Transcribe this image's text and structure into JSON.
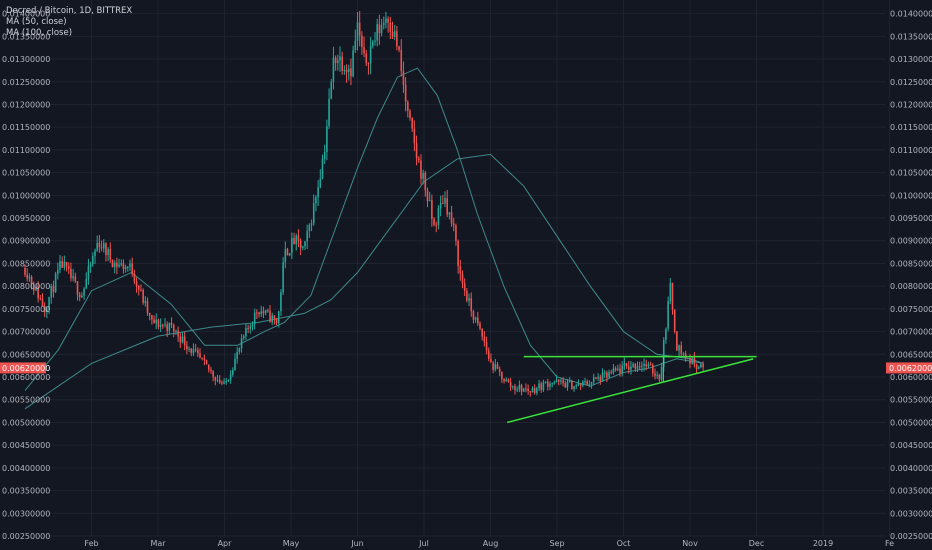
{
  "legend": {
    "line1": "Decred / Bitcoin, 1D, BITTREX",
    "line2": "MA (50, close)",
    "line3": "MA (100, close)"
  },
  "colors": {
    "background": "#131722",
    "grid": "#1f2330",
    "up": "#26a69a",
    "down": "#ef5350",
    "ma": "#3e8a8a",
    "trendline": "#39e639",
    "price_tag": "#ef5350",
    "axis_text": "#b2b5be"
  },
  "last_price": "0.00620000",
  "chart_data": {
    "type": "candlestick",
    "symbol": "Decred / Bitcoin",
    "timeframe": "1D",
    "exchange": "BITTREX",
    "ylim": [
      0.0025,
      0.0143
    ],
    "y_ticks": [
      "0.01400000",
      "0.01350000",
      "0.01300000",
      "0.01250000",
      "0.01200000",
      "0.01150000",
      "0.01100000",
      "0.01050000",
      "0.01000000",
      "0.00950000",
      "0.00900000",
      "0.00850000",
      "0.00800000",
      "0.00750000",
      "0.00700000",
      "0.00650000",
      "0.00600000",
      "0.00550000",
      "0.00500000",
      "0.00450000",
      "0.00400000",
      "0.00350000",
      "0.00300000",
      "0.00250000"
    ],
    "x_ticks": [
      {
        "label": "Feb",
        "month": 1
      },
      {
        "label": "Mar",
        "month": 2
      },
      {
        "label": "Apr",
        "month": 3
      },
      {
        "label": "May",
        "month": 4
      },
      {
        "label": "Jun",
        "month": 5
      },
      {
        "label": "Jul",
        "month": 6
      },
      {
        "label": "Aug",
        "month": 7
      },
      {
        "label": "Sep",
        "month": 8
      },
      {
        "label": "Oct",
        "month": 9
      },
      {
        "label": "Nov",
        "month": 10
      },
      {
        "label": "Dec",
        "month": 11
      },
      {
        "label": "2019",
        "month": 12
      },
      {
        "label": "Fe",
        "month": 13
      }
    ],
    "price_path": [
      [
        0.0,
        0.0084
      ],
      [
        0.3,
        0.0075
      ],
      [
        0.55,
        0.0085
      ],
      [
        0.85,
        0.0078
      ],
      [
        1.1,
        0.009
      ],
      [
        1.35,
        0.0085
      ],
      [
        1.6,
        0.0084
      ],
      [
        1.9,
        0.0072
      ],
      [
        2.2,
        0.0071
      ],
      [
        2.5,
        0.0066
      ],
      [
        2.8,
        0.0061
      ],
      [
        3.0,
        0.0058
      ],
      [
        3.3,
        0.0069
      ],
      [
        3.5,
        0.0075
      ],
      [
        3.8,
        0.0072
      ],
      [
        3.9,
        0.0087
      ],
      [
        4.05,
        0.009
      ],
      [
        4.2,
        0.0088
      ],
      [
        4.35,
        0.0098
      ],
      [
        4.5,
        0.011
      ],
      [
        4.65,
        0.0131
      ],
      [
        4.9,
        0.0128
      ],
      [
        5.0,
        0.0137
      ],
      [
        5.1,
        0.0129
      ],
      [
        5.3,
        0.0136
      ],
      [
        5.45,
        0.014
      ],
      [
        5.6,
        0.0133
      ],
      [
        5.75,
        0.0118
      ],
      [
        5.9,
        0.0108
      ],
      [
        6.0,
        0.0103
      ],
      [
        6.15,
        0.0093
      ],
      [
        6.3,
        0.01
      ],
      [
        6.45,
        0.0092
      ],
      [
        6.55,
        0.0082
      ],
      [
        6.7,
        0.0075
      ],
      [
        6.9,
        0.0068
      ],
      [
        7.0,
        0.0063
      ],
      [
        7.3,
        0.0058
      ],
      [
        7.6,
        0.0057
      ],
      [
        7.9,
        0.0059
      ],
      [
        8.3,
        0.0058
      ],
      [
        8.7,
        0.006
      ],
      [
        9.0,
        0.0062
      ],
      [
        9.3,
        0.0063
      ],
      [
        9.55,
        0.006
      ],
      [
        9.7,
        0.008
      ],
      [
        9.8,
        0.0067
      ],
      [
        9.95,
        0.0064
      ],
      [
        10.2,
        0.0062
      ]
    ],
    "ma50_path": [
      [
        0.0,
        0.0057
      ],
      [
        0.5,
        0.0066
      ],
      [
        1.0,
        0.0079
      ],
      [
        1.6,
        0.0083
      ],
      [
        2.2,
        0.0076
      ],
      [
        2.7,
        0.0067
      ],
      [
        3.2,
        0.0067
      ],
      [
        3.6,
        0.007
      ],
      [
        3.9,
        0.0072
      ],
      [
        4.3,
        0.0078
      ],
      [
        4.7,
        0.0094
      ],
      [
        5.0,
        0.0106
      ],
      [
        5.3,
        0.0117
      ],
      [
        5.6,
        0.0126
      ],
      [
        5.9,
        0.0128
      ],
      [
        6.2,
        0.0122
      ],
      [
        6.5,
        0.011
      ],
      [
        6.8,
        0.0096
      ],
      [
        7.2,
        0.008
      ],
      [
        7.6,
        0.0067
      ],
      [
        8.0,
        0.006
      ],
      [
        8.5,
        0.0058
      ],
      [
        9.0,
        0.0061
      ],
      [
        9.4,
        0.0062
      ],
      [
        9.8,
        0.0064
      ],
      [
        10.2,
        0.0063
      ]
    ],
    "ma100_path": [
      [
        0.0,
        0.0053
      ],
      [
        0.5,
        0.0058
      ],
      [
        1.0,
        0.0063
      ],
      [
        2.0,
        0.0069
      ],
      [
        2.8,
        0.0071
      ],
      [
        3.5,
        0.0072
      ],
      [
        4.2,
        0.0074
      ],
      [
        4.6,
        0.0077
      ],
      [
        5.0,
        0.0083
      ],
      [
        5.5,
        0.0093
      ],
      [
        6.0,
        0.0103
      ],
      [
        6.5,
        0.0108
      ],
      [
        7.0,
        0.0109
      ],
      [
        7.5,
        0.0102
      ],
      [
        8.0,
        0.0091
      ],
      [
        8.5,
        0.008
      ],
      [
        9.0,
        0.007
      ],
      [
        9.5,
        0.0065
      ],
      [
        10.0,
        0.0064
      ],
      [
        10.2,
        0.0063
      ]
    ],
    "annotations": [
      {
        "type": "horizontal_line",
        "y": 0.00645,
        "x_start_month": 7.5,
        "x_end_month": 11.0
      },
      {
        "type": "trend_line",
        "points": [
          [
            7.25,
            0.005
          ],
          [
            10.95,
            0.0064
          ]
        ]
      },
      {
        "type": "vertical_line",
        "x_month": 9.6,
        "y_range": [
          0.0059,
          0.00645
        ]
      }
    ]
  }
}
